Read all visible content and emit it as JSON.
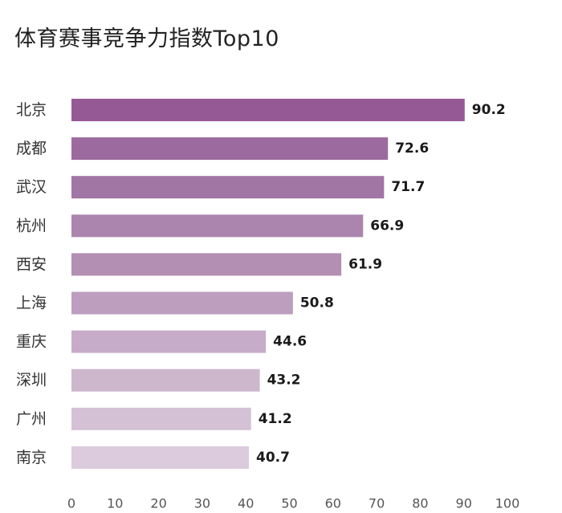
{
  "chart_data": {
    "type": "bar",
    "orientation": "horizontal",
    "title": "体育赛事竞争力指数Top10",
    "categories": [
      "北京",
      "成都",
      "武汉",
      "杭州",
      "西安",
      "上海",
      "重庆",
      "深圳",
      "广州",
      "南京"
    ],
    "values": [
      90.2,
      72.6,
      71.7,
      66.9,
      61.9,
      50.8,
      44.6,
      43.2,
      41.2,
      40.7
    ],
    "value_labels": [
      "90.2",
      "72.6",
      "71.7",
      "66.9",
      "61.9",
      "50.8",
      "44.6",
      "43.2",
      "41.2",
      "40.7"
    ],
    "xlim": [
      0,
      100
    ],
    "xticks": [
      "0",
      "10",
      "20",
      "30",
      "40",
      "50",
      "60",
      "70",
      "80",
      "90",
      "100"
    ],
    "grid": false,
    "legend": "none",
    "bar_colors": [
      "#955a96",
      "#9c6a9e",
      "#a175a4",
      "#ab85ad",
      "#b28fb3",
      "#bd9ebf",
      "#c6acc8",
      "#ccb7cd",
      "#d4c1d6",
      "#dccadd"
    ]
  }
}
